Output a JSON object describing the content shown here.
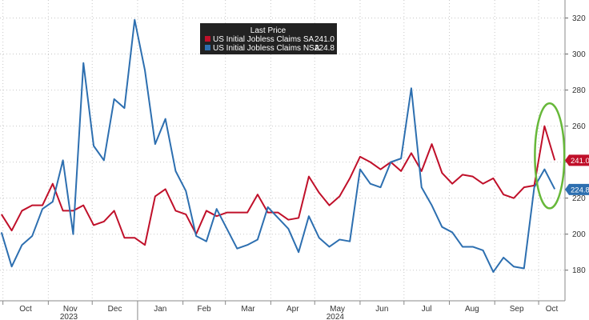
{
  "chart_data": {
    "type": "line",
    "legend": {
      "title": "Last Price",
      "placement": "top-center",
      "entries": [
        {
          "name": "US Initial Jobless Claims SA",
          "value": "241.0",
          "color": "#c0102a"
        },
        {
          "name": "US Initial Jobless Claims NSA",
          "value": "224.8",
          "color": "#2d6fb0"
        }
      ]
    },
    "ylim": [
      163,
      330
    ],
    "yticks": [
      180,
      200,
      220,
      240,
      260,
      280,
      300,
      320
    ],
    "y_axis_side": "right",
    "grid": {
      "horizontal": true,
      "vertical": true,
      "style": "dotted"
    },
    "x_start": "2023-09-29",
    "x_end": "2024-10-19",
    "months": [
      {
        "label": "Oct",
        "date": "2023-10-01"
      },
      {
        "label": "Nov",
        "date": "2023-11-01"
      },
      {
        "label": "Dec",
        "date": "2023-12-01"
      },
      {
        "label": "Jan",
        "date": "2024-01-01"
      },
      {
        "label": "Feb",
        "date": "2024-02-01"
      },
      {
        "label": "Mar",
        "date": "2024-03-01"
      },
      {
        "label": "Apr",
        "date": "2024-04-01"
      },
      {
        "label": "May",
        "date": "2024-05-01"
      },
      {
        "label": "Jun",
        "date": "2024-06-01"
      },
      {
        "label": "Jul",
        "date": "2024-07-01"
      },
      {
        "label": "Aug",
        "date": "2024-08-01"
      },
      {
        "label": "Sep",
        "date": "2024-09-01"
      },
      {
        "label": "Oct",
        "date": "2024-10-01"
      }
    ],
    "years": [
      {
        "label": "2023",
        "center": "2023-11-15"
      },
      {
        "label": "2024",
        "center": "2024-05-15"
      }
    ],
    "year_divider": "2024-01-01",
    "x": [
      "2023-09-30",
      "2023-10-07",
      "2023-10-14",
      "2023-10-21",
      "2023-10-28",
      "2023-11-04",
      "2023-11-11",
      "2023-11-18",
      "2023-11-25",
      "2023-12-02",
      "2023-12-09",
      "2023-12-16",
      "2023-12-23",
      "2023-12-30",
      "2024-01-06",
      "2024-01-13",
      "2024-01-20",
      "2024-01-27",
      "2024-02-03",
      "2024-02-10",
      "2024-02-17",
      "2024-02-24",
      "2024-03-02",
      "2024-03-09",
      "2024-03-16",
      "2024-03-23",
      "2024-03-30",
      "2024-04-06",
      "2024-04-13",
      "2024-04-20",
      "2024-04-27",
      "2024-05-04",
      "2024-05-11",
      "2024-05-18",
      "2024-05-25",
      "2024-06-01",
      "2024-06-08",
      "2024-06-15",
      "2024-06-22",
      "2024-06-29",
      "2024-07-06",
      "2024-07-13",
      "2024-07-20",
      "2024-07-27",
      "2024-08-03",
      "2024-08-10",
      "2024-08-17",
      "2024-08-24",
      "2024-08-31",
      "2024-09-07",
      "2024-09-14",
      "2024-09-21",
      "2024-09-28",
      "2024-10-05",
      "2024-10-12"
    ],
    "series": [
      {
        "name": "US Initial Jobless Claims SA",
        "color": "#c0102a",
        "values": [
          211,
          202,
          213,
          216,
          216,
          228,
          213,
          213,
          216,
          205,
          207,
          213,
          198,
          198,
          194,
          221,
          225,
          213,
          211,
          200,
          213,
          210,
          212,
          212,
          212,
          222,
          212,
          212,
          208,
          209,
          232,
          223,
          216,
          221,
          231,
          243,
          240,
          236,
          240,
          235,
          245,
          235,
          250,
          234,
          228,
          233,
          232,
          228,
          231,
          222,
          220,
          226,
          227,
          260,
          241
        ]
      },
      {
        "name": "US Initial Jobless Claims NSA",
        "color": "#2d6fb0",
        "values": [
          201,
          182,
          194,
          199,
          214,
          218,
          241,
          200,
          295,
          249,
          241,
          275,
          270,
          319,
          291,
          250,
          264,
          235,
          224,
          199,
          196,
          214,
          203,
          192,
          194,
          197,
          215,
          209,
          203,
          190,
          210,
          198,
          193,
          197,
          196,
          236,
          228,
          226,
          240,
          242,
          281,
          226,
          216,
          204,
          201,
          193,
          193,
          191,
          179,
          187,
          182,
          181,
          226,
          236,
          225
        ]
      }
    ],
    "last_values": [
      {
        "label": "241.0",
        "value": 241.0,
        "color": "#c0102a"
      },
      {
        "label": "224.8",
        "value": 224.8,
        "color": "#2d6fb0"
      }
    ],
    "annotation": {
      "shape": "ellipse",
      "color": "#67b83a",
      "around": [
        "2024-10-05",
        "2024-10-12"
      ],
      "y_range": [
        217,
        270
      ]
    }
  }
}
